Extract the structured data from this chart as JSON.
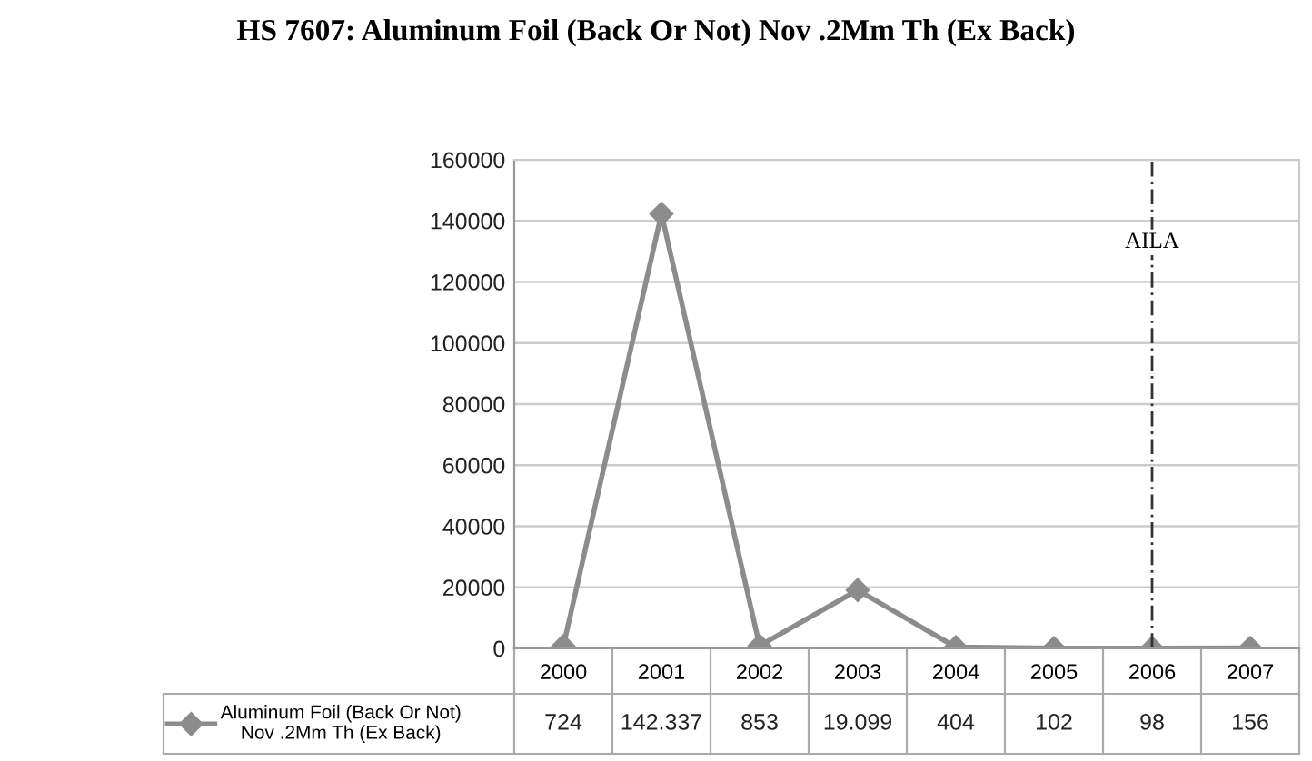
{
  "chart_data": {
    "type": "line",
    "title": "HS 7607: Aluminum Foil (Back Or Not) Nov .2Mm Th (Ex Back)",
    "categories": [
      "2000",
      "2001",
      "2002",
      "2003",
      "2004",
      "2005",
      "2006",
      "2007"
    ],
    "series": [
      {
        "name": "Aluminum Foil (Back Or Not) Nov .2Mm Th (Ex Back)",
        "color": "#8c8c8c",
        "values": [
          724,
          142337,
          853,
          19099,
          404,
          102,
          98,
          156
        ],
        "value_labels": [
          "724",
          "142.337",
          "853",
          "19.099",
          "404",
          "102",
          "98",
          "156"
        ]
      }
    ],
    "ylim": [
      0,
      160000
    ],
    "yticks": [
      0,
      20000,
      40000,
      60000,
      80000,
      100000,
      120000,
      140000,
      160000
    ],
    "ref_lines": [
      {
        "axis": "x",
        "value": "2006",
        "label": "AILA",
        "color": "#333333",
        "line_style": "dashed"
      }
    ],
    "grid": "y",
    "legend": "bottom left",
    "marker": "diamond",
    "line_style": "solid"
  }
}
